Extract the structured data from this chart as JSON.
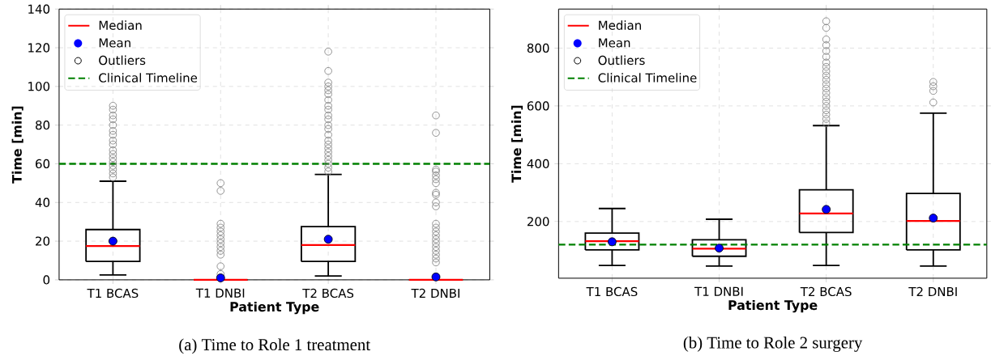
{
  "chart_data": [
    {
      "type": "box",
      "categories": [
        "T1 BCAS",
        "T1 DNBI",
        "T2 BCAS",
        "T2 DNBI"
      ],
      "xlabel": "Patient Type",
      "ylabel": "Time [min]",
      "ylim": [
        0,
        140
      ],
      "yticks": [
        0,
        20,
        40,
        60,
        80,
        100,
        120,
        140
      ],
      "grid": true,
      "legend": "top left",
      "boxes": [
        {
          "low": 2.5,
          "q1": 9.5,
          "median": 17.5,
          "q3": 26,
          "high": 51,
          "mean": 20,
          "outliers": [
            53,
            55,
            57,
            59,
            61,
            63,
            65,
            67,
            70,
            72,
            75,
            77,
            80,
            83,
            85,
            88,
            90
          ]
        },
        {
          "low": 0,
          "q1": 0,
          "median": 0,
          "q3": 0,
          "high": 0,
          "mean": 1,
          "outliers": [
            3,
            7,
            13,
            15,
            17,
            19,
            21,
            23,
            25,
            27,
            29,
            46,
            50
          ]
        },
        {
          "low": 2,
          "q1": 9.5,
          "median": 18,
          "q3": 27.5,
          "high": 54.5,
          "mean": 21,
          "outliers": [
            56,
            58,
            60,
            62,
            64,
            66,
            68,
            70,
            72,
            75,
            78,
            80,
            83,
            85,
            88,
            90,
            93,
            96,
            98,
            100,
            102,
            108,
            118
          ]
        },
        {
          "low": 0,
          "q1": 0,
          "median": 0,
          "q3": 0,
          "high": 0,
          "mean": 1.5,
          "outliers": [
            9,
            11,
            13,
            15,
            17,
            19,
            21,
            23,
            25,
            27,
            29,
            38,
            40,
            44,
            45,
            50,
            52,
            54,
            56,
            57,
            76,
            85
          ]
        }
      ],
      "ref_lines": [
        {
          "axis": "y",
          "value": 60,
          "label": "Clinical Timeline",
          "color": "#008000",
          "line_style": "dashed"
        }
      ],
      "annotations": [
        "(a) Time to Role 1 treatment",
        "Median",
        "Mean",
        "Outliers"
      ]
    },
    {
      "type": "box",
      "categories": [
        "T1 BCAS",
        "T1 DNBI",
        "T2 BCAS",
        "T2 DNBI"
      ],
      "xlabel": "Patient Type",
      "ylabel": "Time [min]",
      "ylim": [
        4,
        935
      ],
      "yticks": [
        200,
        400,
        600,
        800
      ],
      "grid": true,
      "legend": "top left",
      "boxes": [
        {
          "low": 48,
          "q1": 102,
          "median": 132,
          "q3": 160,
          "high": 245,
          "mean": 130
        },
        {
          "low": 46,
          "q1": 80,
          "median": 106,
          "q3": 137,
          "high": 208,
          "mean": 108
        },
        {
          "low": 48,
          "q1": 162,
          "median": 228,
          "q3": 310,
          "high": 532,
          "mean": 242,
          "outliers": [
            540,
            555,
            570,
            585,
            600,
            615,
            630,
            645,
            660,
            675,
            690,
            705,
            720,
            735,
            750,
            770,
            790,
            810,
            830,
            870,
            893
          ]
        },
        {
          "low": 46,
          "q1": 102,
          "median": 202,
          "q3": 297,
          "high": 575,
          "mean": 212,
          "outliers": [
            612,
            652,
            668,
            683
          ]
        }
      ],
      "ref_lines": [
        {
          "axis": "y",
          "value": 120,
          "label": "Clinical Timeline",
          "color": "#008000",
          "line_style": "dashed"
        }
      ],
      "annotations": [
        "(b) Time to Role 2 surgery",
        "Median",
        "Mean",
        "Outliers"
      ]
    }
  ]
}
